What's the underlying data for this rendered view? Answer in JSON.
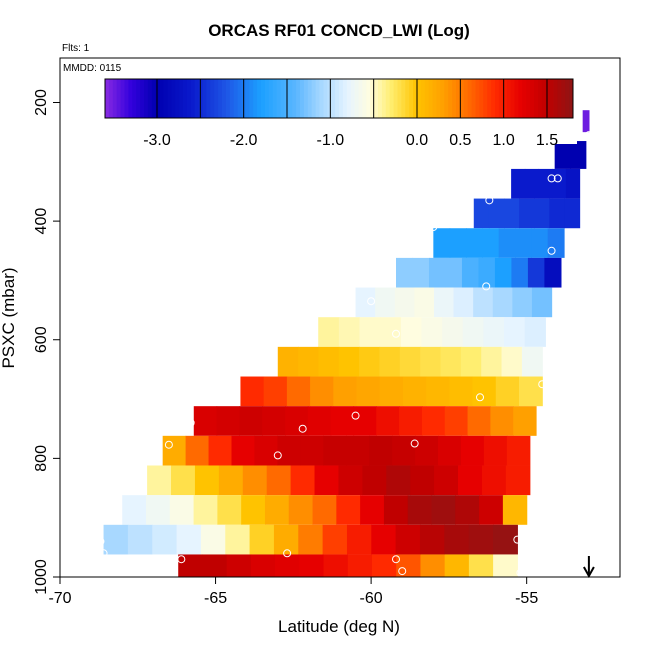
{
  "chart_data": {
    "type": "heatmap",
    "title": "ORCAS RF01 CONCD_LWI (Log)",
    "flts_label": "Flts: 1",
    "mmdd_label": "MMDD: 0115",
    "xlabel": "Latitude (deg N)",
    "ylabel": "PSXC (mbar)",
    "xlim": [
      -70,
      -52
    ],
    "ylim": [
      1000,
      100
    ],
    "x_ticks": [
      -70,
      -65,
      -60,
      -55
    ],
    "x_tick_labels": [
      "-70",
      "-65",
      "-60",
      "-55"
    ],
    "y_ticks": [
      200,
      400,
      600,
      800,
      1000
    ],
    "y_tick_labels": [
      "200",
      "400",
      "600",
      "800",
      "1000"
    ],
    "colorbar": {
      "range": [
        -3.6,
        1.8
      ],
      "ticks": [
        -3.0,
        -2.0,
        -1.0,
        0.0,
        0.5,
        1.0,
        1.5
      ],
      "tick_labels": [
        "-3.0",
        "-2.0",
        "-1.0",
        "0.0",
        "0.5",
        "1.0",
        "1.5"
      ],
      "divider_values": [
        -3.0,
        -2.5,
        -2.0,
        -1.5,
        -1.0,
        -0.5,
        0.0,
        0.5,
        1.0,
        1.5
      ]
    },
    "colormap": [
      [
        -3.6,
        "#8a2be2"
      ],
      [
        -3.3,
        "#3300dd"
      ],
      [
        -3.0,
        "#0000b0"
      ],
      [
        -2.6,
        "#0a1acc"
      ],
      [
        -2.2,
        "#1e56e6"
      ],
      [
        -1.8,
        "#1ca0ff"
      ],
      [
        -1.4,
        "#5ab6ff"
      ],
      [
        -1.1,
        "#a8d8ff"
      ],
      [
        -0.8,
        "#e6f4ff"
      ],
      [
        -0.55,
        "#fffde0"
      ],
      [
        -0.3,
        "#ffee70"
      ],
      [
        0.0,
        "#ffc300"
      ],
      [
        0.3,
        "#ffa000"
      ],
      [
        0.6,
        "#ff6a00"
      ],
      [
        0.9,
        "#ff2a00"
      ],
      [
        1.2,
        "#e60000"
      ],
      [
        1.5,
        "#c00000"
      ],
      [
        1.8,
        "#8e1515"
      ]
    ],
    "bands": [
      {
        "p_top": 213,
        "p_bot": 250,
        "lat_start": -53.2,
        "lat_end": -53.0,
        "values": [
          -3.5
        ]
      },
      {
        "p_top": 265,
        "p_bot": 312,
        "lat_start": -54.1,
        "lat_end": -53.1,
        "values": [
          -3.0,
          -3.0
        ]
      },
      {
        "p_top": 312,
        "p_bot": 362,
        "lat_start": -55.5,
        "lat_end": -53.3,
        "values": [
          -2.6,
          -2.6,
          -2.6,
          -2.6,
          -2.7
        ]
      },
      {
        "p_top": 362,
        "p_bot": 412,
        "lat_start": -56.7,
        "lat_end": -53.3,
        "values": [
          -2.3,
          -2.3,
          -2.3,
          -2.4,
          -2.4,
          -2.5,
          -2.5
        ]
      },
      {
        "p_top": 412,
        "p_bot": 462,
        "lat_start": -58.0,
        "lat_end": -53.8,
        "values": [
          -1.8,
          -1.8,
          -1.8,
          -1.8,
          -1.9,
          -1.9,
          -1.9,
          -2.0
        ]
      },
      {
        "p_top": 462,
        "p_bot": 512,
        "lat_start": -59.2,
        "lat_end": -53.9,
        "values": [
          -1.2,
          -1.2,
          -1.3,
          -1.3,
          -1.5,
          -1.6,
          -1.8,
          -2.0,
          -2.4,
          -2.8
        ]
      },
      {
        "p_top": 512,
        "p_bot": 562,
        "lat_start": -60.5,
        "lat_end": -54.2,
        "values": [
          -0.8,
          -0.7,
          -0.65,
          -0.6,
          -0.75,
          -0.85,
          -1.0,
          -1.1,
          -1.2,
          -1.3
        ]
      },
      {
        "p_top": 562,
        "p_bot": 612,
        "lat_start": -61.7,
        "lat_end": -54.4,
        "values": [
          -0.4,
          -0.45,
          -0.5,
          -0.5,
          -0.55,
          -0.6,
          -0.65,
          -0.7,
          -0.75,
          -0.8,
          -0.85
        ]
      },
      {
        "p_top": 612,
        "p_bot": 662,
        "lat_start": -63.0,
        "lat_end": -54.5,
        "values": [
          0.15,
          0.1,
          0.05,
          0.0,
          -0.05,
          -0.1,
          -0.15,
          -0.2,
          -0.25,
          -0.3,
          -0.4,
          -0.5,
          -0.7
        ]
      },
      {
        "p_top": 662,
        "p_bot": 712,
        "lat_start": -64.2,
        "lat_end": -54.5,
        "values": [
          0.9,
          0.8,
          0.6,
          0.4,
          0.3,
          0.25,
          0.2,
          0.15,
          0.1,
          0.05,
          0.0,
          -0.1,
          -0.2
        ]
      },
      {
        "p_top": 712,
        "p_bot": 762,
        "lat_start": -65.7,
        "lat_end": -54.7,
        "values": [
          1.3,
          1.35,
          1.4,
          1.35,
          1.3,
          1.25,
          1.2,
          1.2,
          1.1,
          1.0,
          0.9,
          0.8,
          0.6,
          0.4,
          0.3
        ]
      },
      {
        "p_top": 762,
        "p_bot": 812,
        "lat_start": -66.7,
        "lat_end": -54.9,
        "values": [
          0.2,
          0.6,
          0.9,
          1.2,
          1.3,
          1.4,
          1.4,
          1.45,
          1.45,
          1.5,
          1.45,
          1.4,
          1.3,
          1.2,
          1.1,
          1.0
        ]
      },
      {
        "p_top": 812,
        "p_bot": 862,
        "lat_start": -67.2,
        "lat_end": -54.9,
        "values": [
          -0.4,
          -0.2,
          0.0,
          0.2,
          0.4,
          0.6,
          0.9,
          1.2,
          1.4,
          1.5,
          1.6,
          1.5,
          1.4,
          1.2,
          1.1,
          1.0
        ]
      },
      {
        "p_top": 862,
        "p_bot": 912,
        "lat_start": -68.0,
        "lat_end": -55.0,
        "values": [
          -0.8,
          -0.7,
          -0.6,
          -0.4,
          -0.2,
          0.0,
          0.2,
          0.4,
          0.6,
          0.9,
          1.2,
          1.5,
          1.65,
          1.7,
          1.6,
          1.4,
          0.1
        ]
      },
      {
        "p_top": 912,
        "p_bot": 962,
        "lat_start": -68.6,
        "lat_end": -55.3,
        "values": [
          -1.1,
          -1.0,
          -0.9,
          -0.8,
          -0.6,
          -0.4,
          -0.1,
          0.2,
          0.5,
          0.8,
          1.0,
          1.2,
          1.4,
          1.55,
          1.65,
          1.7,
          1.75
        ]
      },
      {
        "p_top": 962,
        "p_bot": 1012,
        "lat_start": -66.2,
        "lat_end": -55.3,
        "values": [
          1.5,
          1.5,
          1.4,
          1.3,
          1.25,
          1.2,
          1.1,
          1.0,
          0.9,
          0.7,
          0.4,
          0.1,
          -0.2,
          -0.5
        ]
      }
    ],
    "points": [
      [
        -53.0,
        255
      ],
      [
        -54.2,
        328
      ],
      [
        -54.0,
        328
      ],
      [
        -56.2,
        365
      ],
      [
        -58.0,
        410
      ],
      [
        -54.2,
        450
      ],
      [
        -56.3,
        510
      ],
      [
        -53.9,
        538
      ],
      [
        -60.0,
        535
      ],
      [
        -59.2,
        590
      ],
      [
        -54.5,
        675
      ],
      [
        -56.5,
        697
      ],
      [
        -60.5,
        728
      ],
      [
        -65.8,
        740
      ],
      [
        -62.2,
        750
      ],
      [
        -58.6,
        775
      ],
      [
        -63.0,
        795
      ],
      [
        -66.5,
        777
      ],
      [
        -54.5,
        838
      ],
      [
        -55.3,
        937
      ],
      [
        -68.7,
        940
      ],
      [
        -68.6,
        960
      ],
      [
        -62.7,
        960
      ],
      [
        -59.2,
        970
      ],
      [
        -59.0,
        990
      ],
      [
        -66.1,
        970
      ],
      [
        -55.2,
        993
      ]
    ],
    "arrow_lat": -53.0
  }
}
